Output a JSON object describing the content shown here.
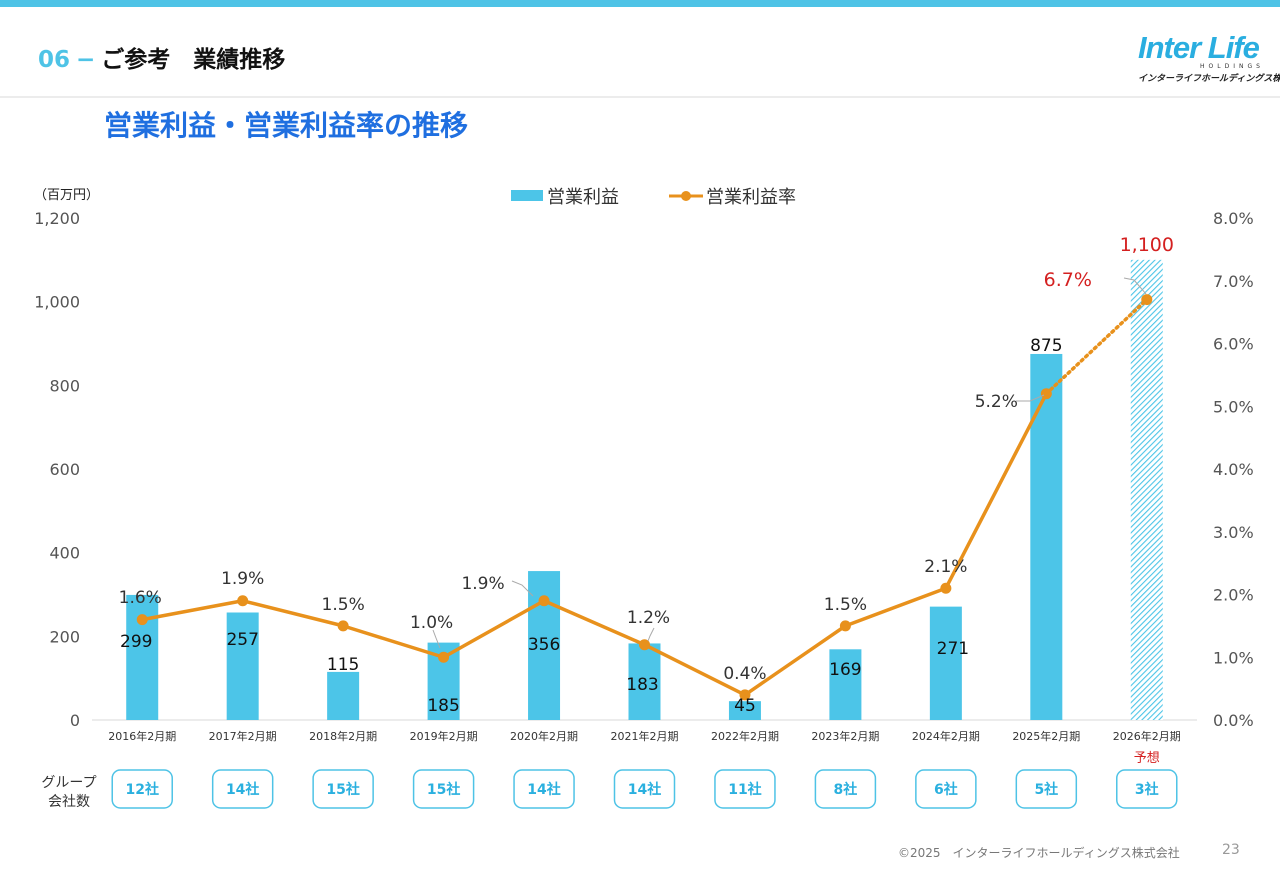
{
  "header": {
    "section_number": "06",
    "section_dash": "−",
    "section_title": "ご参考　業績推移"
  },
  "logo": {
    "brand": "Inter Life",
    "sub": "HOLDINGS",
    "kana": "インターライフホールディングス株式会社"
  },
  "subtitle": "営業利益・営業利益率の推移",
  "colors": {
    "bar": "#4cc5e8",
    "line": "#e8911c",
    "forecast": "#d42020",
    "accent": "#4ec3e6",
    "title": "#1f6fe0"
  },
  "chart_data": {
    "type": "bar",
    "unit_label": "（百万円）",
    "categories": [
      "2016年2月期",
      "2017年2月期",
      "2018年2月期",
      "2019年2月期",
      "2020年2月期",
      "2021年2月期",
      "2022年2月期",
      "2023年2月期",
      "2024年2月期",
      "2025年2月期",
      "2026年2月期"
    ],
    "series": [
      {
        "name": "営業利益",
        "type": "bar",
        "axis": "left",
        "values": [
          299,
          257,
          115,
          185,
          356,
          183,
          45,
          169,
          271,
          875,
          1100
        ],
        "labels": [
          "299",
          "257",
          "115",
          "185",
          "356",
          "183",
          "45",
          "169",
          "271",
          "875",
          "1,100"
        ]
      },
      {
        "name": "営業利益率",
        "type": "line",
        "axis": "right",
        "values": [
          1.6,
          1.9,
          1.5,
          1.0,
          1.9,
          1.2,
          0.4,
          1.5,
          2.1,
          5.2,
          6.7
        ],
        "labels": [
          "1.6%",
          "1.9%",
          "1.5%",
          "1.0%",
          "1.9%",
          "1.2%",
          "0.4%",
          "1.5%",
          "2.1%",
          "5.2%",
          "6.7%"
        ]
      }
    ],
    "forecast_index": 10,
    "forecast_note": "予想",
    "ylim": [
      0,
      1200
    ],
    "y_ticks": [
      "0",
      "200",
      "400",
      "600",
      "800",
      "1,000",
      "1,200"
    ],
    "y2lim": [
      0,
      8
    ],
    "y2_ticks": [
      "0.0%",
      "1.0%",
      "2.0%",
      "3.0%",
      "4.0%",
      "5.0%",
      "6.0%",
      "7.0%",
      "8.0%"
    ],
    "legend": [
      "営業利益",
      "営業利益率"
    ],
    "legend_position": "top-center"
  },
  "group_companies": {
    "label_line1": "グループ",
    "label_line2": "会社数",
    "counts": [
      "12社",
      "14社",
      "15社",
      "15社",
      "14社",
      "14社",
      "11社",
      "8社",
      "6社",
      "5社",
      "3社"
    ]
  },
  "footer": {
    "copyright": "©2025　インターライフホールディングス株式会社",
    "page": "23"
  }
}
